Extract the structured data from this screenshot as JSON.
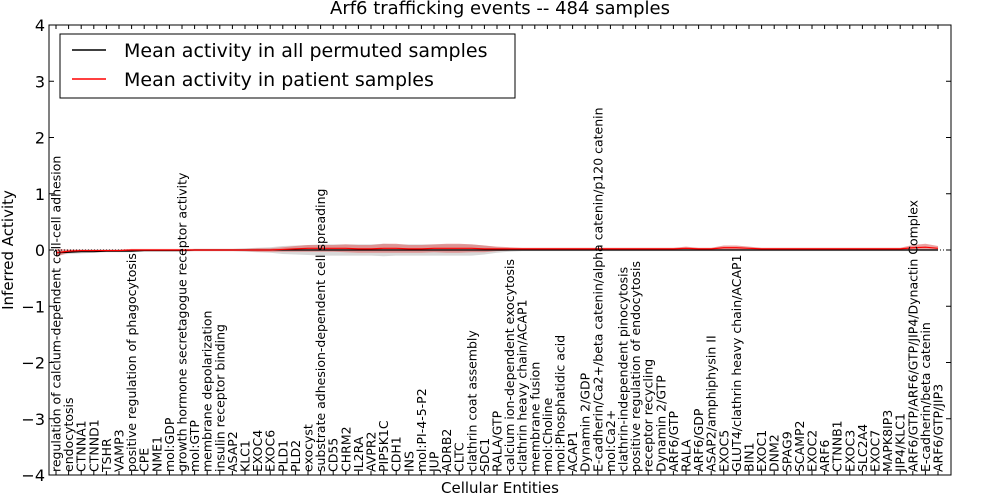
{
  "chart_data": {
    "type": "line",
    "title": "Arf6 trafficking events -- 484 samples",
    "xlabel": "Cellular Entities",
    "ylabel": "Inferred Activity",
    "ylim": [
      -4,
      4
    ],
    "yticks": [
      -4,
      -3,
      -2,
      -1,
      0,
      1,
      2,
      3,
      4
    ],
    "ytick_labels": [
      "−4",
      "−3",
      "−2",
      "−1",
      "0",
      "1",
      "2",
      "3",
      "4"
    ],
    "legend": {
      "position": "top-left",
      "entries": [
        {
          "label": "Mean activity in all permuted samples",
          "color": "#000000"
        },
        {
          "label": "Mean activity in patient samples",
          "color": "#ff0000"
        }
      ]
    },
    "categories": [
      "regulation of calcium-dependent cell-cell adhesion",
      "endocytosis",
      "CTNNA1",
      "CTNND1",
      "TSHR",
      "VAMP3",
      "positive regulation of phagocytosis",
      "CPE",
      "NME1",
      "mol:GDP",
      "growth hormone secretagogue receptor activity",
      "mol:GTP",
      "membrane depolarization",
      "insulin receptor binding",
      "ASAP2",
      "KLC1",
      "EXOC4",
      "EXOC6",
      "PLD1",
      "PLD2",
      "exocyst",
      "substrate adhesion-dependent cell spreading",
      "CD55",
      "CHRM2",
      "IL2RA",
      "AVPR2",
      "PIP5K1C",
      "CDH1",
      "INS",
      "mol:PI-4-5-P2",
      "JUP",
      "ADRB2",
      "CLTC",
      "clathrin coat assembly",
      "SDC1",
      "RALA/GTP",
      "calcium ion-dependent exocytosis",
      "clathrin heavy chain/ACAP1",
      "membrane fusion",
      "mol:Choline",
      "mol:Phosphatidic acid",
      "ACAP1",
      "Dynamin 2/GDP",
      "E-cadherin/Ca2+/beta catenin/alpha catenin/p120 catenin",
      "mol:Ca2+",
      "clathrin-independent pinocytosis",
      "positive regulation of endocytosis",
      "receptor recycling",
      "Dynamin 2/GTP",
      "ARF6/GTP",
      "RALA",
      "ARF6/GDP",
      "ASAP2/amphiphysin II",
      "EXOC5",
      "GLUT4/clathrin heavy chain/ACAP1",
      "BIN1",
      "EXOC1",
      "DNM2",
      "SPAG9",
      "SCAMP2",
      "EXOC2",
      "ARF6",
      "CTNNB1",
      "EXOC3",
      "SLC2A4",
      "EXOC7",
      "MAPK8IP3",
      "JIP4/KLC1",
      "ARF6/GTP/ARF6/GTP/JIP4/Dynactin Complex",
      "E-cadherin/beta catenin",
      "ARF6/GTP/JIP3"
    ],
    "series": [
      {
        "name": "Mean activity in all permuted samples",
        "color": "#000000",
        "values": [
          -0.05,
          -0.04,
          -0.03,
          -0.03,
          -0.02,
          -0.02,
          -0.02,
          -0.01,
          -0.01,
          -0.01,
          -0.01,
          0,
          0,
          0,
          0,
          0,
          0,
          0,
          0,
          0,
          0,
          0,
          0,
          0,
          0,
          0,
          0,
          0,
          0,
          0,
          0,
          0,
          0,
          0,
          0,
          0,
          0,
          0,
          0,
          0,
          0,
          0,
          0,
          0,
          0,
          0,
          0,
          0,
          0,
          0,
          0,
          0,
          0,
          0,
          0,
          0,
          0,
          0,
          0,
          0,
          0,
          0,
          0,
          0,
          0,
          0,
          0,
          0,
          0,
          0,
          0
        ],
        "band": [
          0.04,
          0.03,
          0.03,
          0.02,
          0.02,
          0.02,
          0.02,
          0.02,
          0.02,
          0.02,
          0.02,
          0.02,
          0.02,
          0.02,
          0.02,
          0.03,
          0.04,
          0.05,
          0.07,
          0.08,
          0.09,
          0.1,
          0.1,
          0.1,
          0.1,
          0.1,
          0.11,
          0.1,
          0.1,
          0.1,
          0.1,
          0.1,
          0.1,
          0.1,
          0.08,
          0.05,
          0.03,
          0.02,
          0.02,
          0.02,
          0.02,
          0.02,
          0.02,
          0.02,
          0.02,
          0.02,
          0.02,
          0.02,
          0.02,
          0.02,
          0.02,
          0.02,
          0.02,
          0.02,
          0.02,
          0.02,
          0.02,
          0.02,
          0.02,
          0.02,
          0.02,
          0.02,
          0.02,
          0.02,
          0.02,
          0.02,
          0.02,
          0.02,
          0.02,
          0.02,
          0.02
        ]
      },
      {
        "name": "Mean activity in patient samples",
        "color": "#ff0000",
        "values": [
          -0.05,
          -0.02,
          -0.01,
          -0.01,
          -0.01,
          -0.01,
          0,
          0,
          0,
          0,
          0,
          0,
          0,
          0,
          0,
          0,
          0,
          0,
          0.01,
          0.02,
          0.03,
          0.03,
          0.03,
          0.03,
          0.02,
          0.02,
          0.03,
          0.03,
          0.02,
          0.02,
          0.03,
          0.03,
          0.03,
          0.03,
          0.02,
          0.02,
          0.02,
          0.02,
          0.02,
          0.02,
          0.02,
          0.02,
          0.02,
          0.02,
          0.02,
          0.02,
          0.02,
          0.02,
          0.02,
          0.02,
          0.03,
          0.02,
          0.02,
          0.04,
          0.04,
          0.03,
          0.02,
          0.02,
          0.02,
          0.02,
          0.02,
          0.02,
          0.02,
          0.02,
          0.02,
          0.02,
          0.02,
          0.02,
          0.04,
          0.05,
          0.03
        ],
        "band": [
          0.07,
          0.03,
          0.02,
          0.02,
          0.02,
          0.02,
          0.02,
          0.02,
          0.02,
          0.02,
          0.02,
          0.02,
          0.02,
          0.02,
          0.02,
          0.02,
          0.03,
          0.03,
          0.04,
          0.05,
          0.06,
          0.06,
          0.06,
          0.07,
          0.07,
          0.07,
          0.08,
          0.08,
          0.07,
          0.07,
          0.07,
          0.08,
          0.08,
          0.07,
          0.06,
          0.04,
          0.03,
          0.02,
          0.02,
          0.02,
          0.02,
          0.02,
          0.02,
          0.02,
          0.02,
          0.02,
          0.02,
          0.02,
          0.02,
          0.02,
          0.03,
          0.02,
          0.02,
          0.04,
          0.04,
          0.03,
          0.02,
          0.02,
          0.02,
          0.02,
          0.02,
          0.02,
          0.02,
          0.02,
          0.02,
          0.02,
          0.02,
          0.02,
          0.05,
          0.06,
          0.04
        ]
      }
    ],
    "grid": false
  }
}
